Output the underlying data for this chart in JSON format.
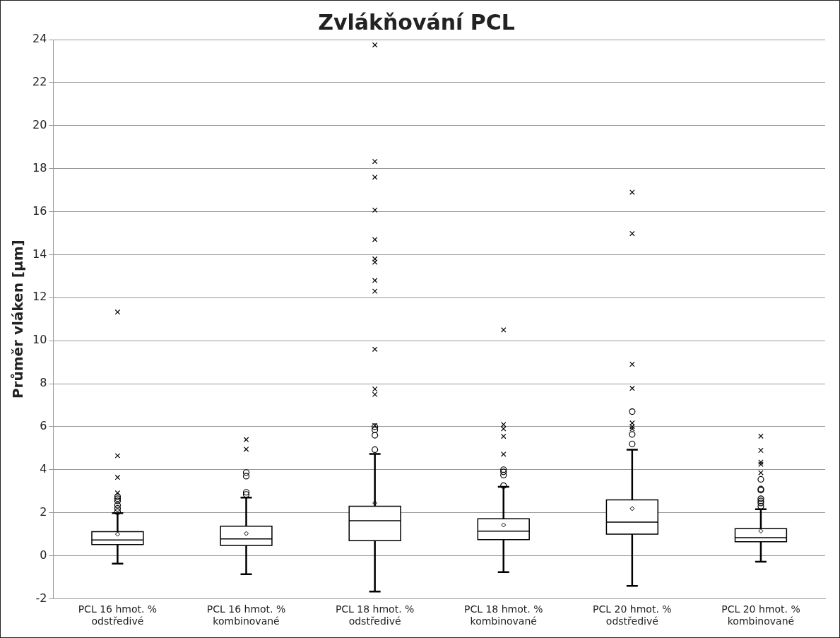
{
  "chart_data": {
    "type": "box",
    "title": "Zvlákňování PCL",
    "ylabel": "Průměr vláken [µm]",
    "categories": [
      "PCL 16 hmot. %\nodstředivé",
      "PCL 16 hmot. %\nkombinované",
      "PCL 18 hmot. %\nodstředivé",
      "PCL 18 hmot. %\nkombinované",
      "PCL 20 hmot. %\nodstředivé",
      "PCL 20 hmot. %\nkombinované"
    ],
    "ylim": [
      -2,
      24
    ],
    "yticks": [
      -2,
      0,
      2,
      4,
      6,
      8,
      10,
      12,
      14,
      16,
      18,
      20,
      22,
      24
    ],
    "grid": "y",
    "legend": false,
    "series": [
      {
        "color": "#000000",
        "marker": "circle",
        "boxes": [
          {
            "low": -0.37,
            "q1": 0.52,
            "median": 0.73,
            "q3": 1.12,
            "high": 1.98,
            "mean": 1.0,
            "outliers": [
              2.05,
              2.2,
              2.35,
              2.55,
              2.65,
              2.75
            ]
          },
          {
            "low": -0.86,
            "q1": 0.48,
            "median": 0.78,
            "q3": 1.37,
            "high": 2.7,
            "mean": 1.03,
            "outliers": [
              2.85,
              2.95,
              3.7,
              3.87
            ]
          },
          {
            "low": -1.67,
            "q1": 0.7,
            "median": 1.63,
            "q3": 2.3,
            "high": 4.73,
            "mean": 2.45,
            "outliers": [
              4.93,
              5.6,
              5.85,
              6.0
            ]
          },
          {
            "low": -0.76,
            "q1": 0.75,
            "median": 1.14,
            "q3": 1.72,
            "high": 3.2,
            "mean": 1.43,
            "outliers": [
              3.26,
              3.75,
              3.9,
              4.0
            ]
          },
          {
            "low": -1.4,
            "q1": 1.0,
            "median": 1.56,
            "q3": 2.6,
            "high": 4.93,
            "mean": 2.19,
            "outliers": [
              5.2,
              5.64,
              6.7
            ]
          },
          {
            "low": -0.28,
            "q1": 0.65,
            "median": 0.84,
            "q3": 1.26,
            "high": 2.16,
            "mean": 1.15,
            "outliers": [
              2.3,
              2.45,
              2.55,
              2.65,
              3.05,
              3.1,
              3.55
            ]
          }
        ]
      },
      {
        "type": "scatter",
        "color": "#000000",
        "marker": "cross",
        "x": [
          "PCL 16 hmot. %\nodstředivé",
          "PCL 16 hmot. %\nodstředivé",
          "PCL 16 hmot. %\nodstředivé",
          "PCL 16 hmot. %\nodstředivé",
          "PCL 16 hmot. %\nkombinované",
          "PCL 16 hmot. %\nkombinované",
          "PCL 18 hmot. %\nodstředivé",
          "PCL 18 hmot. %\nodstředivé",
          "PCL 18 hmot. %\nodstředivé",
          "PCL 18 hmot. %\nodstředivé",
          "PCL 18 hmot. %\nodstředivé",
          "PCL 18 hmot. %\nodstředivé",
          "PCL 18 hmot. %\nodstředivé",
          "PCL 18 hmot. %\nodstředivé",
          "PCL 18 hmot. %\nodstředivé",
          "PCL 18 hmot. %\nodstředivé",
          "PCL 18 hmot. %\nodstředivé",
          "PCL 18 hmot. %\nodstředivé",
          "PCL 18 hmot. %\nodstředivé",
          "PCL 18 hmot. %\nkombinované",
          "PCL 18 hmot. %\nkombinované",
          "PCL 18 hmot. %\nkombinované",
          "PCL 18 hmot. %\nkombinované",
          "PCL 18 hmot. %\nkombinované",
          "PCL 20 hmot. %\nodstředivé",
          "PCL 20 hmot. %\nodstředivé",
          "PCL 20 hmot. %\nodstředivé",
          "PCL 20 hmot. %\nodstředivé",
          "PCL 20 hmot. %\nodstředivé",
          "PCL 20 hmot. %\nodstředivé",
          "PCL 20 hmot. %\nodstředivé",
          "PCL 20 hmot. %\nkombinované",
          "PCL 20 hmot. %\nkombinované",
          "PCL 20 hmot. %\nkombinované",
          "PCL 20 hmot. %\nkombinované",
          "PCL 20 hmot. %\nkombinované"
        ],
        "values": [
          2.92,
          3.64,
          4.65,
          11.33,
          4.95,
          5.4,
          7.5,
          7.75,
          9.6,
          12.3,
          12.8,
          13.65,
          13.8,
          14.7,
          16.07,
          17.6,
          18.33,
          23.75,
          6.05,
          4.72,
          5.55,
          5.9,
          6.1,
          10.5,
          5.9,
          6.0,
          6.17,
          7.78,
          8.9,
          14.98,
          16.9,
          3.86,
          4.25,
          4.35,
          4.9,
          5.56
        ]
      }
    ]
  }
}
